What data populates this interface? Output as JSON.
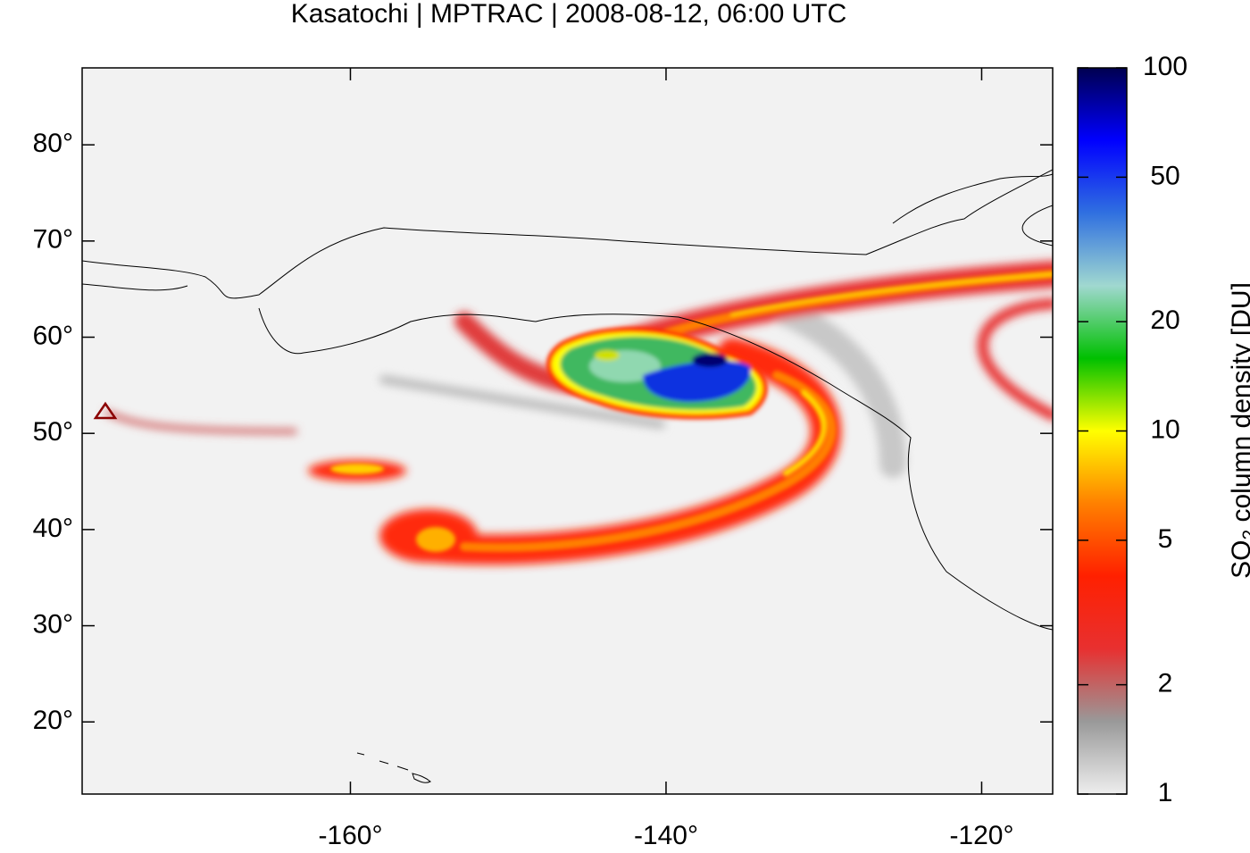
{
  "chart_data": {
    "type": "map",
    "title": "Kasatochi | MPTRAC | 2008-08-12, 06:00 UTC",
    "xlim": [
      -177,
      -115.5
    ],
    "ylim": [
      12.5,
      88
    ],
    "xticks": [
      {
        "value": -160,
        "label": "-160°"
      },
      {
        "value": -140,
        "label": "-140°"
      },
      {
        "value": -120,
        "label": "-120°"
      }
    ],
    "yticks": [
      {
        "value": 20,
        "label": "20°"
      },
      {
        "value": 30,
        "label": "30°"
      },
      {
        "value": 40,
        "label": "40°"
      },
      {
        "value": 50,
        "label": "50°"
      },
      {
        "value": 60,
        "label": "60°"
      },
      {
        "value": 70,
        "label": "70°"
      },
      {
        "value": 80,
        "label": "80°"
      }
    ],
    "colorbar": {
      "label_parts": [
        "SO",
        "2",
        " column density [DU]"
      ],
      "log_scale": true,
      "lim": [
        1,
        100
      ],
      "ticks": [
        1,
        2,
        5,
        10,
        20,
        50,
        100
      ],
      "colors": [
        "#eeeeee",
        "#999999",
        "#e83030",
        "#ff2000",
        "#ff8000",
        "#ffff00",
        "#00c000",
        "#a0d8d0",
        "#3070e0",
        "#0000ff",
        "#000050"
      ]
    }
  }
}
